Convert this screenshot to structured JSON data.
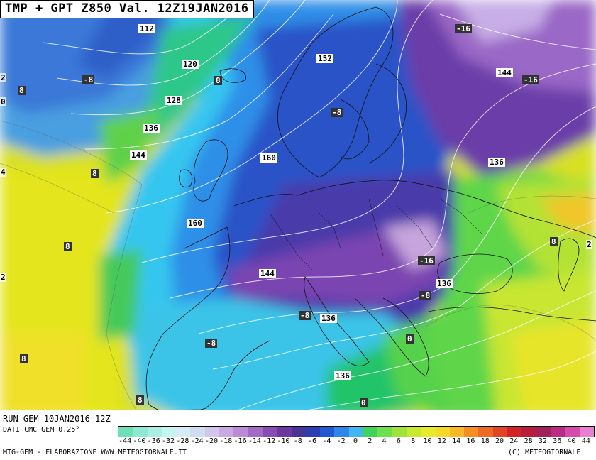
{
  "header": {
    "title": "TMP + GPT Z850 Val. 12Z19JAN2016"
  },
  "footer": {
    "run": "RUN GEM 10JAN2016 12Z",
    "data_source": "DATI CMC GEM 0.25°",
    "credit_left": "MTG-GEM - ELABORAZIONE WWW.METEOGIORNALE.IT",
    "credit_right": "(C) METEOGIORNALE"
  },
  "colorbar": {
    "labels": [
      "-44",
      "-40",
      "-36",
      "-32",
      "-28",
      "-24",
      "-20",
      "-18",
      "-16",
      "-14",
      "-12",
      "-10",
      "-8",
      "-6",
      "-4",
      "-2",
      "0",
      "2",
      "4",
      "6",
      "8",
      "10",
      "12",
      "14",
      "16",
      "18",
      "20",
      "24",
      "28",
      "32",
      "36",
      "40",
      "44"
    ],
    "colors": [
      "#6ee0b8",
      "#8ee9d0",
      "#a9f0e2",
      "#c5f5ef",
      "#d8ecf7",
      "#d0dcf4",
      "#d2c6ee",
      "#c9a9e3",
      "#b98dd6",
      "#a36bc6",
      "#8a4bb3",
      "#6d37a0",
      "#4b3398",
      "#2c3fb0",
      "#1f5ad3",
      "#2e86e8",
      "#3fb7f2",
      "#3ed35a",
      "#6ee04c",
      "#9fe43e",
      "#c9e832",
      "#e8ea2e",
      "#f7d82a",
      "#f8b827",
      "#f58f25",
      "#ee6a24",
      "#e24523",
      "#cf2525",
      "#b81e3c",
      "#a3215a",
      "#b92c82",
      "#d64bab",
      "#ea7fcf"
    ]
  },
  "labels": {
    "isohypses": [
      "112",
      "120",
      "128",
      "136",
      "144",
      "152",
      "160",
      "160",
      "144",
      "144",
      "136",
      "136",
      "136",
      "136"
    ],
    "temperatures": [
      "-8",
      "-8",
      "-8",
      "-16",
      "-16",
      "-16",
      "-8",
      "-8",
      "-8",
      "-8",
      "0",
      "0",
      "8",
      "8",
      "8",
      "8",
      "8",
      "8",
      "8"
    ],
    "edge": [
      "2",
      "0",
      "4",
      "2",
      "2"
    ]
  }
}
